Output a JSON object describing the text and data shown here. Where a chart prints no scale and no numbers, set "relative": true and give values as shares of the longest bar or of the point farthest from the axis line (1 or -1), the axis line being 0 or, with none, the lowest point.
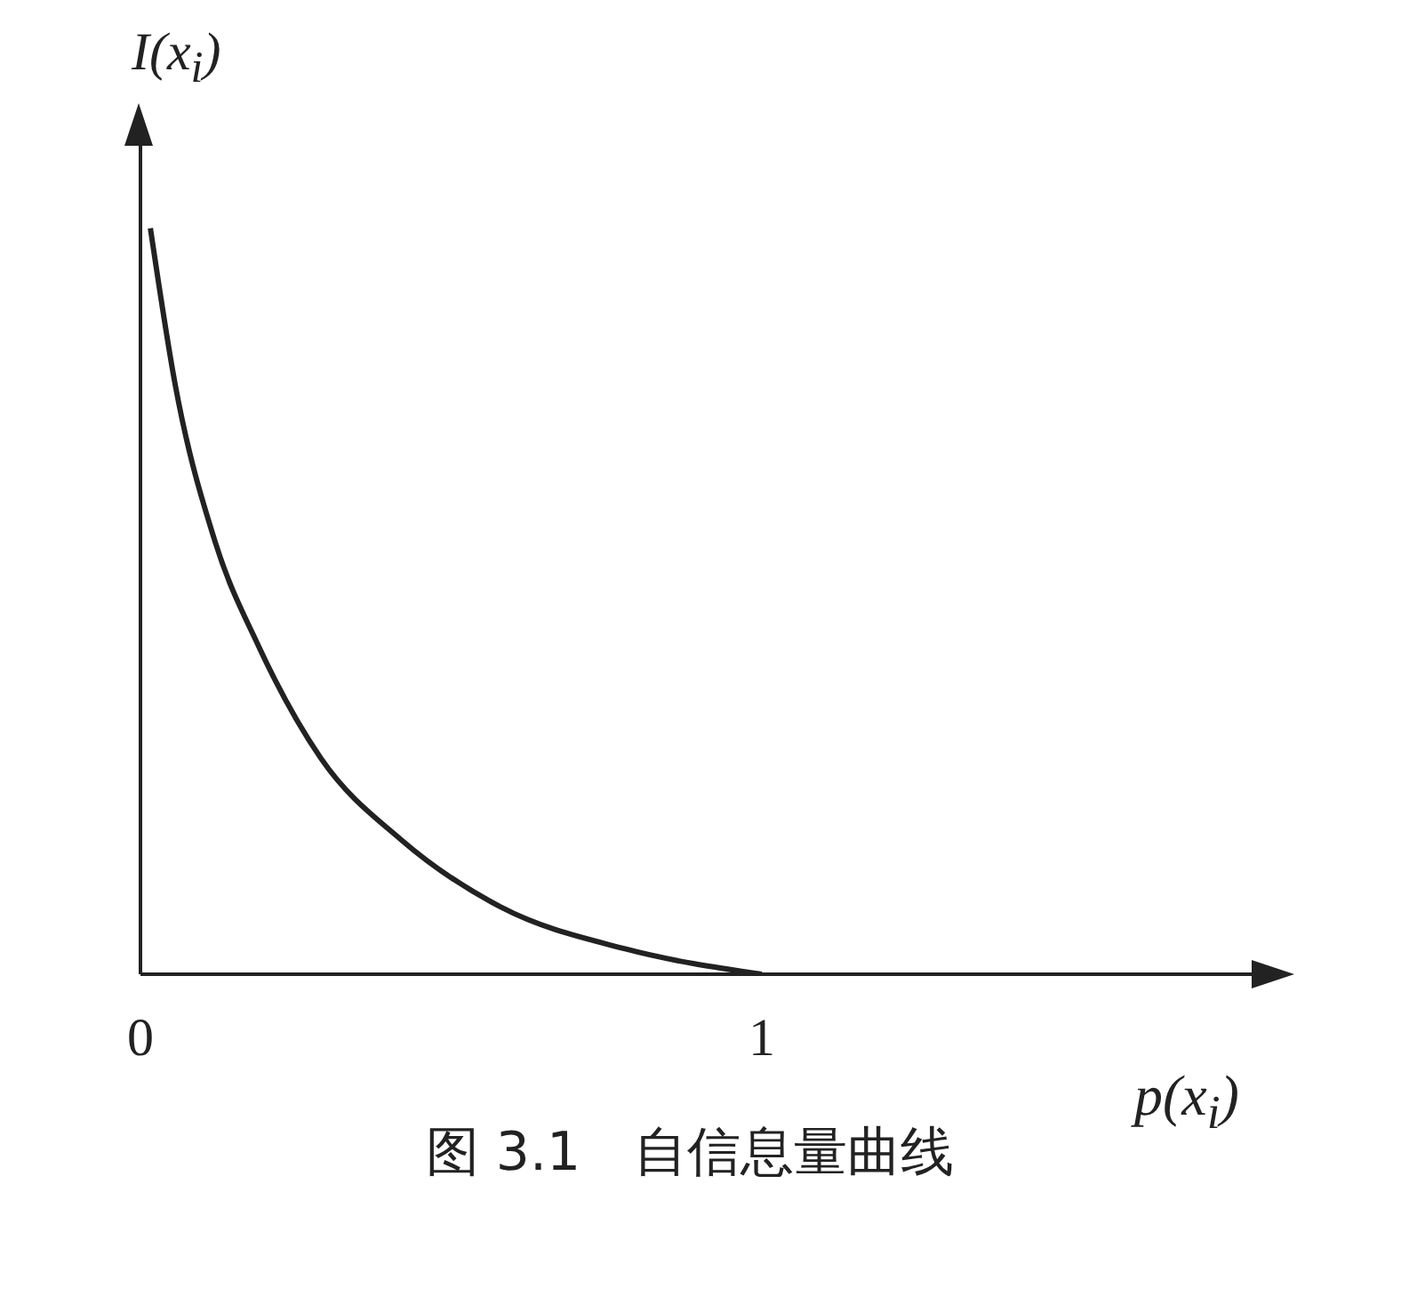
{
  "chart_data": {
    "type": "line",
    "title": "图 3.1　自信息量曲线",
    "xlabel": "p(x$_{i}$)",
    "ylabel": "I(x$_{i}$)",
    "relative": true,
    "x": [
      0.016,
      0.056,
      0.12,
      0.19,
      0.29,
      0.42,
      0.58,
      0.78,
      1
    ],
    "series": [
      {
        "color": "#222222",
        "values": [
          1,
          0.79,
          0.58,
          0.44,
          0.29,
          0.18,
          0.09,
          0.034,
          0
        ]
      }
    ],
    "xlim": [
      0,
      1.8
    ],
    "xticks": [
      0,
      1
    ],
    "grid": false,
    "legend": false
  }
}
